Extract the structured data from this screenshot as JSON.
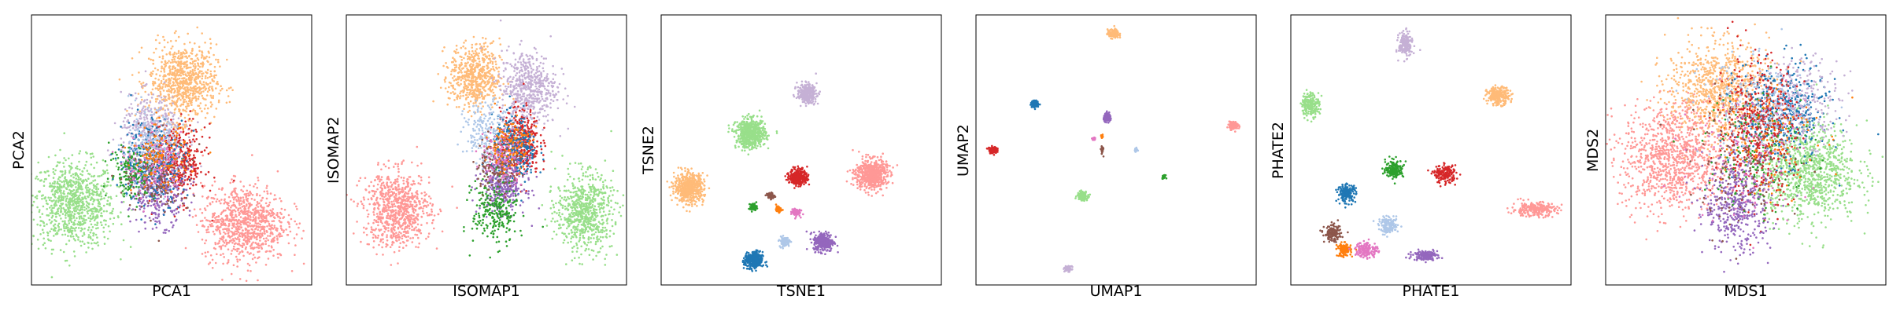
{
  "colors": [
    "#1f77b4",
    "#ff7f0e",
    "#2ca02c",
    "#d62728",
    "#9467bd",
    "#8c564b",
    "#e377c2",
    "#aec7e8",
    "#ffbb78",
    "#98df8a",
    "#ff9896",
    "#c5b0d5"
  ],
  "chart_data": [
    {
      "type": "scatter",
      "xlabel": "PCA1",
      "ylabel": "PCA2",
      "xlim": [
        0,
        100
      ],
      "ylim": [
        0,
        100
      ],
      "grid": false,
      "ticks": false,
      "clusters": [
        {
          "color": 9,
          "cx": 15,
          "cy": 30,
          "sx": 7.5,
          "sy": 8,
          "n": 900
        },
        {
          "color": 8,
          "cx": 54,
          "cy": 75,
          "sx": 6,
          "sy": 7,
          "n": 800
        },
        {
          "color": 10,
          "cx": 76,
          "cy": 23,
          "sx": 7.5,
          "sy": 7,
          "n": 900
        },
        {
          "color": 11,
          "cx": 43,
          "cy": 56,
          "sx": 5.5,
          "sy": 7,
          "n": 450
        },
        {
          "color": 3,
          "cx": 53,
          "cy": 45,
          "sx": 4.5,
          "sy": 7,
          "n": 350
        },
        {
          "color": 4,
          "cx": 45,
          "cy": 35,
          "sx": 5,
          "sy": 6.5,
          "n": 350
        },
        {
          "color": 0,
          "cx": 43,
          "cy": 46,
          "sx": 6,
          "sy": 8,
          "n": 300
        },
        {
          "color": 7,
          "cx": 42,
          "cy": 50,
          "sx": 5,
          "sy": 7,
          "n": 200
        },
        {
          "color": 2,
          "cx": 36,
          "cy": 42,
          "sx": 4,
          "sy": 5,
          "n": 150
        },
        {
          "color": 5,
          "cx": 45,
          "cy": 40,
          "sx": 6,
          "sy": 7,
          "n": 150
        },
        {
          "color": 6,
          "cx": 44,
          "cy": 44,
          "sx": 5,
          "sy": 6,
          "n": 120
        },
        {
          "color": 1,
          "cx": 46,
          "cy": 47,
          "sx": 5,
          "sy": 6,
          "n": 120
        }
      ]
    },
    {
      "type": "scatter",
      "xlabel": "ISOMAP1",
      "ylabel": "ISOMAP2",
      "xlim": [
        0,
        100
      ],
      "ylim": [
        0,
        100
      ],
      "grid": false,
      "ticks": false,
      "clusters": [
        {
          "color": 10,
          "cx": 18,
          "cy": 28,
          "sx": 6,
          "sy": 7,
          "n": 800
        },
        {
          "color": 9,
          "cx": 85,
          "cy": 27,
          "sx": 5,
          "sy": 7,
          "n": 700
        },
        {
          "color": 8,
          "cx": 46,
          "cy": 77,
          "sx": 4.5,
          "sy": 6,
          "n": 600
        },
        {
          "color": 11,
          "cx": 65,
          "cy": 73,
          "sx": 5,
          "sy": 7,
          "n": 550
        },
        {
          "color": 3,
          "cx": 62,
          "cy": 53,
          "sx": 3.5,
          "sy": 6,
          "n": 400
        },
        {
          "color": 0,
          "cx": 60,
          "cy": 50,
          "sx": 4,
          "sy": 6,
          "n": 300
        },
        {
          "color": 4,
          "cx": 56,
          "cy": 37,
          "sx": 4,
          "sy": 5,
          "n": 350
        },
        {
          "color": 2,
          "cx": 53,
          "cy": 27,
          "sx": 4,
          "sy": 6,
          "n": 250
        },
        {
          "color": 7,
          "cx": 50,
          "cy": 56,
          "sx": 4,
          "sy": 6,
          "n": 200
        },
        {
          "color": 5,
          "cx": 54,
          "cy": 45,
          "sx": 4,
          "sy": 5,
          "n": 150
        },
        {
          "color": 6,
          "cx": 56,
          "cy": 48,
          "sx": 4,
          "sy": 5,
          "n": 120
        },
        {
          "color": 1,
          "cx": 58,
          "cy": 52,
          "sx": 4,
          "sy": 5,
          "n": 120
        }
      ]
    },
    {
      "type": "scatter",
      "xlabel": "TSNE1",
      "ylabel": "TSNE2",
      "xlim": [
        0,
        100
      ],
      "ylim": [
        0,
        100
      ],
      "grid": false,
      "ticks": false,
      "clusters": [
        {
          "color": 8,
          "cx": 10,
          "cy": 36,
          "sx": 2.6,
          "sy": 2.6,
          "n": 600
        },
        {
          "color": 9,
          "cx": 32,
          "cy": 56,
          "sx": 2.6,
          "sy": 2.6,
          "n": 600
        },
        {
          "color": 10,
          "cx": 75,
          "cy": 41,
          "sx": 2.8,
          "sy": 2.8,
          "n": 600
        },
        {
          "color": 11,
          "cx": 52,
          "cy": 71,
          "sx": 1.7,
          "sy": 1.7,
          "n": 300
        },
        {
          "color": 3,
          "cx": 49,
          "cy": 40,
          "sx": 1.6,
          "sy": 1.6,
          "n": 300
        },
        {
          "color": 0,
          "cx": 33,
          "cy": 9,
          "sx": 1.6,
          "sy": 1.6,
          "n": 300
        },
        {
          "color": 4,
          "cx": 58,
          "cy": 16,
          "sx": 1.8,
          "sy": 1.8,
          "n": 300
        },
        {
          "color": 7,
          "cx": 44,
          "cy": 16,
          "sx": 0.9,
          "sy": 0.9,
          "n": 100
        },
        {
          "color": 2,
          "cx": 33,
          "cy": 29,
          "sx": 0.6,
          "sy": 0.6,
          "n": 80
        },
        {
          "color": 5,
          "cx": 39,
          "cy": 33,
          "sx": 0.7,
          "sy": 0.6,
          "n": 60
        },
        {
          "color": 1,
          "cx": 42,
          "cy": 28,
          "sx": 0.5,
          "sy": 0.5,
          "n": 50
        },
        {
          "color": 6,
          "cx": 48,
          "cy": 27,
          "sx": 0.8,
          "sy": 0.8,
          "n": 80
        }
      ]
    },
    {
      "type": "scatter",
      "xlabel": "UMAP1",
      "ylabel": "UMAP2",
      "xlim": [
        0,
        100
      ],
      "ylim": [
        0,
        100
      ],
      "grid": false,
      "ticks": false,
      "clusters": [
        {
          "color": 8,
          "cx": 49,
          "cy": 93,
          "sx": 1,
          "sy": 0.8,
          "n": 150
        },
        {
          "color": 0,
          "cx": 21,
          "cy": 67,
          "sx": 0.7,
          "sy": 0.6,
          "n": 120
        },
        {
          "color": 3,
          "cx": 6,
          "cy": 50,
          "sx": 0.7,
          "sy": 0.6,
          "n": 120
        },
        {
          "color": 10,
          "cx": 92,
          "cy": 59,
          "sx": 0.8,
          "sy": 0.7,
          "n": 150
        },
        {
          "color": 4,
          "cx": 47,
          "cy": 62,
          "sx": 0.7,
          "sy": 0.7,
          "n": 120
        },
        {
          "color": 9,
          "cx": 38,
          "cy": 33,
          "sx": 0.9,
          "sy": 0.8,
          "n": 150
        },
        {
          "color": 2,
          "cx": 67,
          "cy": 40,
          "sx": 0.3,
          "sy": 0.3,
          "n": 30
        },
        {
          "color": 11,
          "cx": 33,
          "cy": 6,
          "sx": 0.6,
          "sy": 0.5,
          "n": 80
        },
        {
          "color": 7,
          "cx": 57,
          "cy": 50,
          "sx": 0.3,
          "sy": 0.3,
          "n": 30
        },
        {
          "color": 6,
          "cx": 42,
          "cy": 54,
          "sx": 0.3,
          "sy": 0.3,
          "n": 30
        },
        {
          "color": 5,
          "cx": 45,
          "cy": 50,
          "sx": 0.2,
          "sy": 0.8,
          "n": 30
        },
        {
          "color": 1,
          "cx": 45,
          "cy": 55,
          "sx": 0.2,
          "sy": 0.3,
          "n": 20
        }
      ]
    },
    {
      "type": "scatter",
      "xlabel": "PHATE1",
      "ylabel": "PHATE2",
      "xlim": [
        0,
        100
      ],
      "ylim": [
        0,
        100
      ],
      "grid": false,
      "ticks": false,
      "clusters": [
        {
          "color": 11,
          "cx": 41,
          "cy": 89,
          "sx": 1.2,
          "sy": 2.2,
          "n": 200
        },
        {
          "color": 8,
          "cx": 74,
          "cy": 70,
          "sx": 2,
          "sy": 1.6,
          "n": 250
        },
        {
          "color": 9,
          "cx": 7,
          "cy": 67,
          "sx": 1.6,
          "sy": 2.2,
          "n": 200
        },
        {
          "color": 10,
          "cx": 87,
          "cy": 28,
          "sx": 4,
          "sy": 1.3,
          "n": 250
        },
        {
          "color": 0,
          "cx": 20,
          "cy": 34,
          "sx": 1.6,
          "sy": 1.6,
          "n": 180
        },
        {
          "color": 2,
          "cx": 37,
          "cy": 43,
          "sx": 1.6,
          "sy": 1.6,
          "n": 180
        },
        {
          "color": 3,
          "cx": 55,
          "cy": 41,
          "sx": 2,
          "sy": 1.6,
          "n": 180
        },
        {
          "color": 5,
          "cx": 15,
          "cy": 19,
          "sx": 1.5,
          "sy": 1.5,
          "n": 150
        },
        {
          "color": 1,
          "cx": 19,
          "cy": 13,
          "sx": 1.2,
          "sy": 1.2,
          "n": 120
        },
        {
          "color": 6,
          "cx": 27,
          "cy": 13,
          "sx": 2,
          "sy": 1.5,
          "n": 150
        },
        {
          "color": 7,
          "cx": 35,
          "cy": 22,
          "sx": 1.8,
          "sy": 1.4,
          "n": 150
        },
        {
          "color": 4,
          "cx": 48,
          "cy": 11,
          "sx": 2.2,
          "sy": 0.9,
          "n": 150
        }
      ]
    },
    {
      "type": "scatter",
      "xlabel": "MDS1",
      "ylabel": "MDS2",
      "xlim": [
        0,
        100
      ],
      "ylim": [
        0,
        100
      ],
      "grid": false,
      "ticks": false,
      "clusters": [
        {
          "color": 8,
          "cx": 40,
          "cy": 72,
          "sx": 9,
          "sy": 9,
          "n": 900
        },
        {
          "color": 10,
          "cx": 24,
          "cy": 47,
          "sx": 9,
          "sy": 10,
          "n": 1000
        },
        {
          "color": 9,
          "cx": 72,
          "cy": 42,
          "sx": 9,
          "sy": 9,
          "n": 1000
        },
        {
          "color": 0,
          "cx": 63,
          "cy": 64,
          "sx": 8,
          "sy": 9,
          "n": 450
        },
        {
          "color": 11,
          "cx": 70,
          "cy": 68,
          "sx": 7,
          "sy": 8,
          "n": 300
        },
        {
          "color": 3,
          "cx": 54,
          "cy": 58,
          "sx": 7,
          "sy": 13,
          "n": 500
        },
        {
          "color": 4,
          "cx": 47,
          "cy": 30,
          "sx": 6,
          "sy": 9,
          "n": 450
        },
        {
          "color": 7,
          "cx": 52,
          "cy": 65,
          "sx": 9,
          "sy": 9,
          "n": 200
        },
        {
          "color": 2,
          "cx": 55,
          "cy": 50,
          "sx": 10,
          "sy": 12,
          "n": 150
        },
        {
          "color": 5,
          "cx": 50,
          "cy": 45,
          "sx": 10,
          "sy": 12,
          "n": 150
        },
        {
          "color": 6,
          "cx": 52,
          "cy": 48,
          "sx": 10,
          "sy": 12,
          "n": 120
        },
        {
          "color": 1,
          "cx": 55,
          "cy": 55,
          "sx": 10,
          "sy": 12,
          "n": 120
        }
      ]
    }
  ]
}
